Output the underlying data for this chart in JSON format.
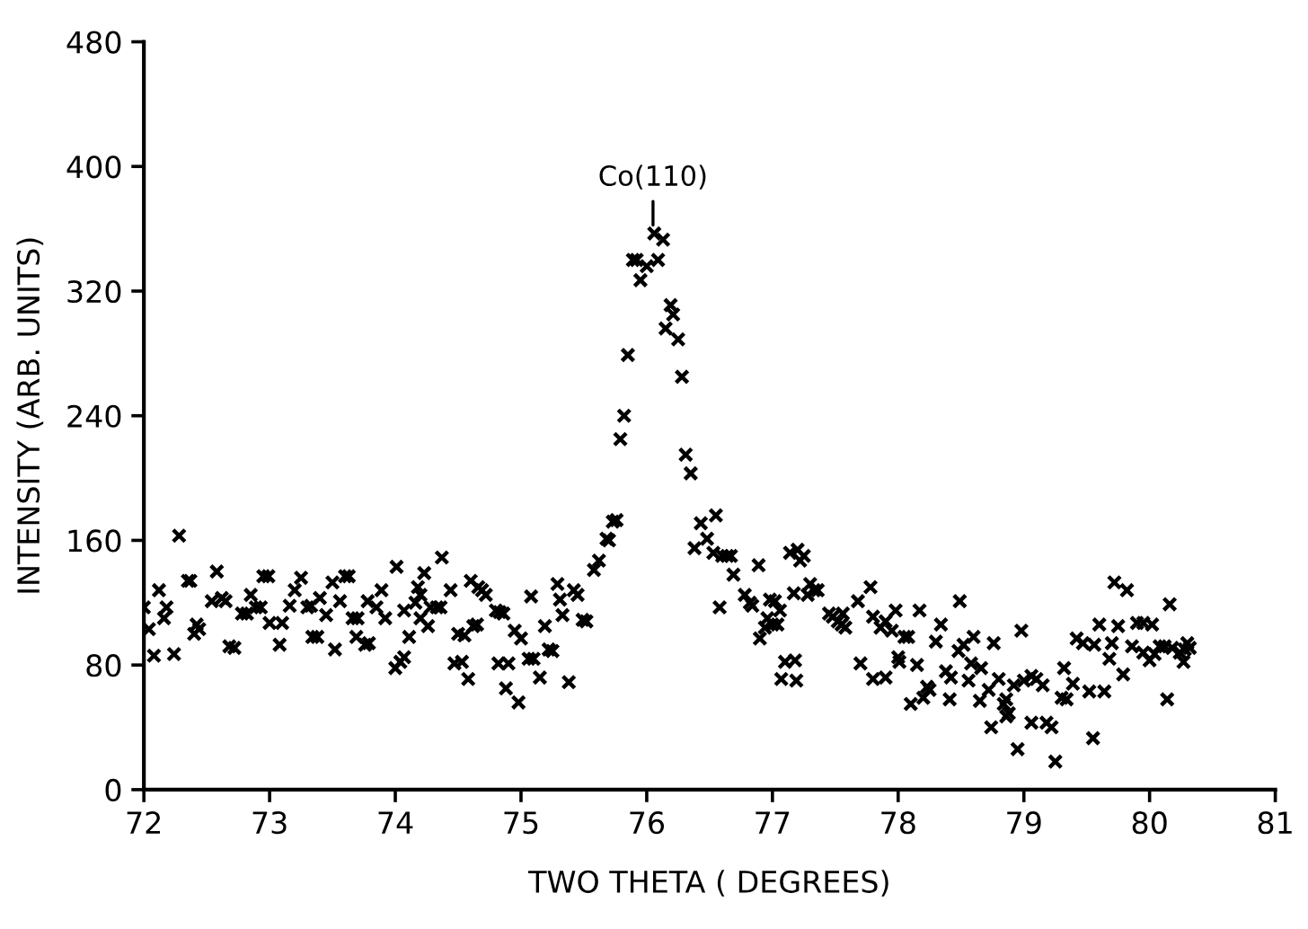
{
  "chart_data": {
    "type": "scatter",
    "xlabel": "TWO THETA ( DEGREES)",
    "ylabel": "INTENSITY (ARB. UNITS)",
    "annotations": [
      "Co(110)"
    ],
    "xlim": [
      72,
      81
    ],
    "xticks": [
      72,
      73,
      74,
      75,
      76,
      77,
      78,
      79,
      80,
      81
    ],
    "ylim": [
      0,
      480
    ],
    "yticks": [
      0,
      80,
      160,
      240,
      320,
      400,
      480
    ],
    "grid": false,
    "marker": "cross",
    "series": [
      {
        "color": "#000000",
        "x": [
          72.0,
          72.04,
          72.08,
          72.12,
          72.16,
          72.18,
          72.24,
          72.28,
          72.35,
          72.37,
          72.4,
          72.42,
          72.44,
          72.54,
          72.58,
          72.62,
          72.65,
          72.68,
          72.72,
          72.78,
          72.82,
          72.85,
          72.89,
          72.93,
          72.95,
          72.99,
          73.0,
          73.08,
          73.1,
          73.16,
          73.2,
          73.25,
          73.3,
          73.33,
          73.34,
          73.38,
          73.4,
          73.45,
          73.5,
          73.52,
          73.56,
          73.6,
          73.63,
          73.66,
          73.69,
          73.7,
          73.76,
          73.79,
          73.78,
          73.85,
          73.89,
          73.92,
          74.0,
          74.01,
          74.04,
          74.07,
          74.07,
          74.11,
          74.16,
          74.18,
          74.2,
          74.2,
          74.23,
          74.26,
          74.28,
          74.33,
          74.36,
          74.37,
          74.44,
          74.47,
          74.5,
          74.53,
          74.55,
          74.58,
          74.6,
          74.62,
          74.65,
          74.66,
          74.69,
          74.72,
          74.8,
          74.82,
          74.83,
          74.86,
          74.9,
          74.88,
          74.95,
          74.98,
          75.0,
          75.06,
          75.08,
          75.1,
          75.15,
          75.19,
          75.22,
          75.25,
          75.29,
          75.31,
          75.33,
          75.38,
          75.42,
          75.45,
          75.49,
          75.52,
          75.58,
          75.62,
          75.68,
          75.7,
          75.73,
          75.76,
          75.79,
          75.82,
          75.85,
          75.89,
          75.92,
          75.95,
          76.0,
          76.06,
          76.09,
          76.13,
          76.15,
          76.19,
          76.21,
          76.25,
          76.28,
          76.31,
          76.35,
          76.38,
          76.43,
          76.48,
          76.53,
          76.55,
          76.58,
          76.6,
          76.64,
          76.67,
          76.69,
          76.78,
          76.82,
          76.84,
          76.89,
          76.9,
          76.94,
          76.96,
          76.98,
          77.0,
          77.02,
          77.04,
          77.06,
          77.07,
          77.1,
          77.14,
          77.17,
          77.18,
          77.19,
          77.2,
          77.22,
          77.25,
          77.28,
          77.3,
          77.33,
          77.36,
          77.45,
          77.48,
          77.52,
          77.55,
          77.56,
          77.58,
          77.68,
          77.7,
          77.78,
          77.8,
          77.8,
          77.86,
          77.9,
          77.9,
          77.95,
          77.98,
          78.0,
          78.01,
          78.05,
          78.08,
          78.1,
          78.15,
          78.17,
          78.2,
          78.23,
          78.25,
          78.3,
          78.34,
          78.38,
          78.42,
          78.41,
          78.48,
          78.52,
          78.6,
          78.49,
          78.56,
          78.58,
          78.66,
          78.65,
          78.72,
          78.74,
          78.76,
          78.8,
          78.84,
          78.86,
          78.88,
          78.86,
          78.92,
          79.0,
          79.06,
          79.1,
          79.15,
          78.95,
          78.98,
          79.06,
          79.18,
          79.22,
          79.25,
          79.3,
          79.34,
          79.32,
          79.39,
          79.42,
          79.47,
          79.56,
          79.52,
          79.55,
          79.6,
          79.64,
          79.68,
          79.7,
          79.72,
          79.82,
          79.75,
          79.79,
          79.86,
          79.9,
          79.95,
          80.02,
          79.95,
          80.0,
          80.04,
          80.08,
          80.12,
          80.14,
          80.16,
          80.18,
          80.24,
          80.28,
          80.3,
          80.32,
          80.27
        ],
        "values": [
          117,
          103,
          86,
          128,
          110,
          117,
          87,
          163,
          134,
          134,
          100,
          106,
          103,
          121,
          140,
          123,
          121,
          92,
          91,
          113,
          113,
          125,
          117,
          117,
          137,
          137,
          107,
          93,
          107,
          118,
          128,
          136,
          117,
          118,
          98,
          98,
          123,
          112,
          133,
          90,
          121,
          137,
          137,
          110,
          98,
          110,
          93,
          94,
          121,
          117,
          128,
          110,
          78,
          143,
          82,
          85,
          115,
          98,
          120,
          130,
          125,
          110,
          139,
          105,
          117,
          117,
          117,
          149,
          128,
          81,
          100,
          82,
          99,
          71,
          134,
          105,
          106,
          130,
          128,
          125,
          115,
          81,
          114,
          113,
          81,
          65,
          102,
          56,
          97,
          84,
          124,
          84,
          72,
          105,
          90,
          89,
          132,
          122,
          112,
          69,
          128,
          125,
          109,
          108,
          141,
          147,
          161,
          160,
          172,
          173,
          225,
          240,
          279,
          340,
          340,
          327,
          336,
          357,
          340,
          353,
          296,
          311,
          305,
          289,
          265,
          215,
          203,
          155,
          171,
          161,
          152,
          176,
          117,
          150,
          150,
          150,
          138,
          125,
          120,
          118,
          144,
          97,
          104,
          110,
          122,
          106,
          121,
          106,
          115,
          71,
          82,
          152,
          126,
          83,
          70,
          154,
          147,
          150,
          125,
          132,
          128,
          128,
          113,
          111,
          108,
          106,
          113,
          104,
          121,
          81,
          130,
          71,
          111,
          104,
          72,
          108,
          102,
          115,
          85,
          82,
          98,
          98,
          55,
          80,
          115,
          59,
          66,
          64,
          95,
          106,
          76,
          72,
          58,
          89,
          93,
          98,
          121,
          70,
          81,
          78,
          57,
          64,
          40,
          94,
          71,
          55,
          58,
          49,
          47,
          67,
          70,
          73,
          71,
          67,
          26,
          102,
          43,
          43,
          40,
          18,
          59,
          58,
          78,
          68,
          97,
          94,
          93,
          63,
          33,
          106,
          63,
          84,
          94,
          133,
          128,
          105,
          74,
          92,
          107,
          107,
          106,
          88,
          83,
          87,
          92,
          92,
          58,
          119,
          91,
          88,
          90,
          94,
          91,
          82
        ]
      }
    ]
  }
}
